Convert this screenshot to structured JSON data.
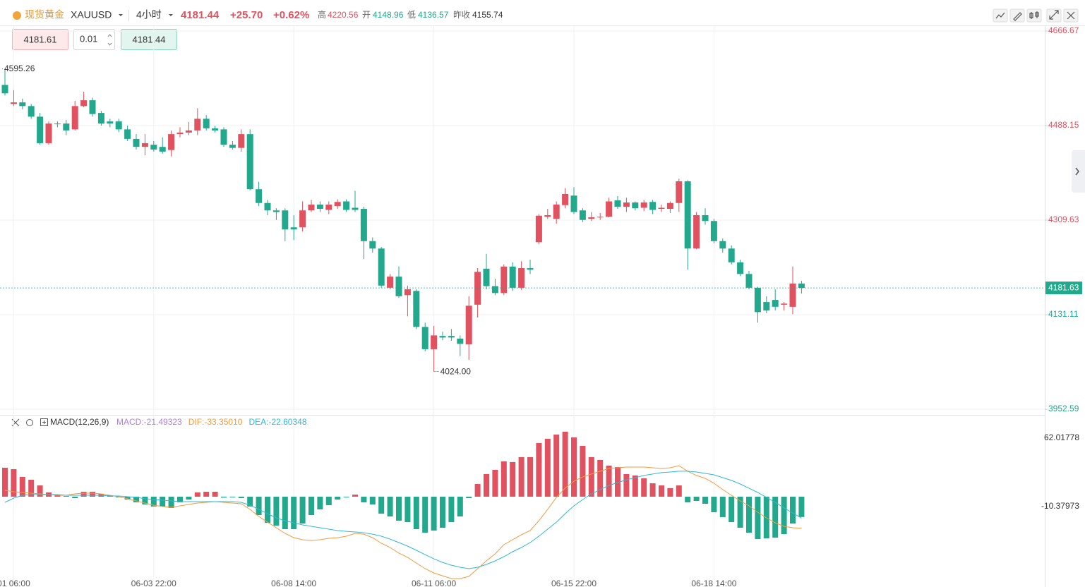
{
  "header": {
    "name": "现货黄金",
    "symbol": "XAUUSD",
    "interval": "4小时",
    "price": "4181.44",
    "change": "+25.70",
    "change_pct": "+0.62%",
    "high_label": "高",
    "high": "4220.56",
    "open_label": "开",
    "open": "4148.96",
    "low_label": "低",
    "low": "4136.57",
    "prev_close_label": "昨收",
    "prev_close": "4155.74"
  },
  "order_panel": {
    "sell": "4181.61",
    "lot": "0.01",
    "buy": "4181.44"
  },
  "chart_data": [
    {
      "type": "candlestick",
      "up_color": "#e0525f",
      "down_color": "#22a88c",
      "grid": true,
      "ylim": [
        3942,
        4676
      ],
      "yticks": [
        4666.67,
        4488.15,
        4309.63,
        4131.11,
        3952.59
      ],
      "last_price": 4181.63,
      "high_label": "4595.26",
      "low_label": "4024.00",
      "categories": [
        null,
        "01 06:00",
        null,
        null,
        null,
        null,
        null,
        null,
        null,
        null,
        null,
        null,
        null,
        null,
        null,
        null,
        null,
        "06-03 22:00",
        null,
        null,
        null,
        null,
        null,
        null,
        null,
        null,
        null,
        null,
        null,
        null,
        null,
        null,
        null,
        "06-08 14:00",
        null,
        null,
        null,
        null,
        null,
        null,
        null,
        null,
        null,
        null,
        null,
        null,
        null,
        null,
        null,
        "06-11 06:00",
        null,
        null,
        null,
        null,
        null,
        null,
        null,
        null,
        null,
        null,
        null,
        null,
        null,
        null,
        null,
        "06-15 22:00",
        null,
        null,
        null,
        null,
        null,
        null,
        null,
        null,
        null,
        null,
        null,
        null,
        null,
        null,
        null,
        "06-18 14:00",
        null,
        null,
        null,
        null,
        null,
        null,
        null,
        null,
        null,
        null
      ],
      "open": [
        4565,
        4529,
        4532,
        4525,
        4505,
        4455,
        4492,
        4492,
        4481,
        4525,
        4536,
        4512,
        4496,
        4496,
        4481,
        4463,
        4448,
        4452,
        4448,
        4442,
        4472,
        4475,
        4479,
        4501,
        4483,
        4481,
        4452,
        4446,
        4472,
        4368,
        4342,
        4328,
        4328,
        4296,
        4296,
        4328,
        4339,
        4329,
        4336,
        4345,
        4333,
        4331,
        4270,
        4256,
        4182,
        4203,
        4168,
        4176,
        4108,
        4066,
        4091,
        4091,
        4086,
        4075,
        4150,
        4218,
        4185,
        4172,
        4222,
        4182,
        4219,
        4268,
        4316,
        4312,
        4338,
        4356,
        4328,
        4312,
        4315,
        4316,
        4347,
        4335,
        4343,
        4333,
        4344,
        4331,
        4331,
        4342,
        4383,
        4256,
        4319,
        4308,
        4270,
        4256,
        4230,
        4208,
        4182,
        4155,
        4159,
        4150,
        4146,
        4190
      ],
      "high": [
        4595.26,
        4555,
        4539,
        4529,
        4512,
        4496,
        4496,
        4499,
        4535,
        4552,
        4541,
        4516,
        4501,
        4501,
        4488,
        4472,
        4472,
        4459,
        4466,
        4479,
        4485,
        4495,
        4521,
        4508,
        4488,
        4485,
        4459,
        4481,
        4481,
        4382,
        4348,
        4332,
        4332,
        4319,
        4345,
        4348,
        4345,
        4345,
        4349,
        4349,
        4365,
        4335,
        4277,
        4259,
        4208,
        4222,
        4186,
        4179,
        4116,
        4110,
        4099,
        4104,
        4092,
        4166,
        4219,
        4246,
        4199,
        4226,
        4230,
        4232,
        4235,
        4321,
        4331,
        4345,
        4370,
        4372,
        4332,
        4325,
        4323,
        4352,
        4355,
        4352,
        4345,
        4348,
        4348,
        4339,
        4345,
        4388,
        4385,
        4325,
        4332,
        4312,
        4275,
        4262,
        4235,
        4214,
        4184,
        4166,
        4179,
        4155,
        4222,
        4195
      ],
      "low": [
        4545,
        4525,
        4519,
        4501,
        4452,
        4452,
        4485,
        4470,
        4479,
        4523,
        4505,
        4488,
        4485,
        4476,
        4459,
        4443,
        4432,
        4439,
        4435,
        4430,
        4466,
        4470,
        4470,
        4479,
        4475,
        4448,
        4443,
        4439,
        4366,
        4336,
        4319,
        4310,
        4270,
        4272,
        4288,
        4325,
        4325,
        4321,
        4331,
        4325,
        4325,
        4236,
        4248,
        4182,
        4179,
        4163,
        4128,
        4104,
        4062,
        4024,
        4083,
        4082,
        4053,
        4046,
        4126,
        4179,
        4168,
        4168,
        4176,
        4178,
        4208,
        4264,
        4312,
        4303,
        4332,
        4321,
        4306,
        4308,
        4310,
        4315,
        4331,
        4325,
        4328,
        4327,
        4321,
        4325,
        4323,
        4325,
        4216,
        4255,
        4301,
        4266,
        4248,
        4226,
        4204,
        4179,
        4116,
        4134,
        4139,
        4139,
        4132,
        4171
      ],
      "close": [
        4549,
        4532,
        4525,
        4505,
        4455,
        4492,
        4491,
        4479,
        4525,
        4536,
        4510,
        4492,
        4492,
        4481,
        4463,
        4448,
        4455,
        4443,
        4439,
        4472,
        4475,
        4479,
        4501,
        4483,
        4479,
        4452,
        4446,
        4472,
        4368,
        4342,
        4328,
        4325,
        4292,
        4292,
        4328,
        4339,
        4331,
        4339,
        4344,
        4329,
        4329,
        4270,
        4256,
        4186,
        4203,
        4166,
        4179,
        4108,
        4066,
        4092,
        4088,
        4088,
        4076,
        4148,
        4212,
        4185,
        4172,
        4222,
        4182,
        4219,
        4216,
        4318,
        4319,
        4339,
        4359,
        4325,
        4310,
        4315,
        4316,
        4345,
        4335,
        4343,
        4332,
        4343,
        4329,
        4333,
        4342,
        4383,
        4256,
        4319,
        4308,
        4270,
        4256,
        4230,
        4208,
        4182,
        4136,
        4139,
        4146,
        4152,
        4190,
        4181.63
      ]
    },
    {
      "type": "macd",
      "title": "MACD(12,26,9)",
      "up_color": "#e0525f",
      "down_color": "#22a88c",
      "ylim": [
        -88,
        85
      ],
      "yticks": [
        62.01778,
        -10.37973
      ],
      "series": [
        {
          "name": "MACD:-21.49323",
          "type": "bar",
          "color": "#b07fd3",
          "values": [
            30.6,
            29.1,
            20.9,
            17.9,
            11.9,
            4.5,
            2.2,
            0.7,
            -1.5,
            5.2,
            5.2,
            3.0,
            1.5,
            -0.7,
            -3.0,
            -6.0,
            -8.2,
            -10.4,
            -10.4,
            -11.9,
            -6.0,
            -3.0,
            4.5,
            5.2,
            5.2,
            -1.0,
            -0.7,
            -1.5,
            -10.4,
            -19.4,
            -27.6,
            -30.6,
            -34.3,
            -34.3,
            -28.4,
            -19.4,
            -13.4,
            -9.0,
            -3.0,
            -0.7,
            2.2,
            -6.0,
            -8.2,
            -17.9,
            -20.9,
            -25.4,
            -26.9,
            -34.3,
            -38.1,
            -35.8,
            -32.8,
            -26.9,
            -20.9,
            -1.5,
            13.4,
            23.9,
            28.4,
            37.3,
            36.6,
            41.8,
            41.8,
            56.7,
            61.2,
            65.7,
            68.7,
            62.7,
            53.7,
            41.8,
            38.8,
            32.8,
            31.3,
            23.9,
            22.4,
            19.4,
            14.2,
            11.9,
            9.0,
            11.9,
            -6.0,
            -4.5,
            -7.5,
            -16.4,
            -21.6,
            -26.9,
            -32.8,
            -38.1,
            -44.8,
            -44.0,
            -43.3,
            -39.6,
            -28.4,
            -21.49323
          ]
        },
        {
          "name": "DIF:-33.35010",
          "type": "line",
          "color": "#f39a3d",
          "values": [
            6.7,
            5.2,
            4.5,
            3.7,
            3.0,
            2.2,
            1.5,
            1.5,
            3.0,
            3.7,
            3.7,
            3.0,
            1.5,
            0,
            -2.2,
            -4.5,
            -6.7,
            -9.0,
            -10.4,
            -11.2,
            -9.7,
            -8.2,
            -6.7,
            -6.0,
            -5.2,
            -6.0,
            -6.7,
            -7.5,
            -13.4,
            -20.9,
            -26.9,
            -32.8,
            -38.8,
            -43.3,
            -45.5,
            -46.3,
            -45.5,
            -44.0,
            -43.3,
            -41.8,
            -38.8,
            -39.6,
            -43.3,
            -49.2,
            -53.7,
            -59.7,
            -64.2,
            -70.1,
            -76.1,
            -80.6,
            -83.6,
            -86.6,
            -86.6,
            -84.3,
            -76.1,
            -67.9,
            -60.4,
            -50.7,
            -45.5,
            -40.3,
            -35.8,
            -25.4,
            -13.4,
            -0.7,
            9.0,
            16.4,
            20.9,
            23.9,
            26.9,
            29.8,
            30.6,
            31.3,
            31.3,
            31.3,
            30.6,
            29.8,
            30.6,
            32.8,
            26.9,
            22.4,
            19.4,
            14.2,
            7.5,
            1.5,
            -4.5,
            -9.7,
            -16.4,
            -22.4,
            -27.6,
            -31.3,
            -32.8,
            -33.3501
          ]
        },
        {
          "name": "DEA:-22.60348",
          "type": "line",
          "color": "#2fb9d6",
          "values": [
            -6.0,
            -1.5,
            1.5,
            2.2,
            2.2,
            2.2,
            2.2,
            1.5,
            1.5,
            1.5,
            1.5,
            1.5,
            0.7,
            0.7,
            0,
            -0.7,
            -2.2,
            -3.0,
            -3.7,
            -4.5,
            -5.2,
            -5.2,
            -5.2,
            -5.2,
            -5.2,
            -5.2,
            -5.2,
            -6.0,
            -9.0,
            -13.4,
            -17.9,
            -22.4,
            -25.4,
            -27.6,
            -29.8,
            -31.3,
            -32.8,
            -34.3,
            -35.8,
            -36.6,
            -37.3,
            -38.1,
            -39.6,
            -41.8,
            -44.8,
            -48.5,
            -52.2,
            -56.7,
            -61.2,
            -65.7,
            -69.4,
            -72.4,
            -74.6,
            -76.1,
            -74.6,
            -71.6,
            -67.9,
            -63.4,
            -58.2,
            -53.7,
            -48.5,
            -41.8,
            -34.3,
            -26.9,
            -17.9,
            -9.7,
            -3.0,
            3.0,
            7.5,
            11.9,
            14.9,
            17.9,
            20.1,
            22.4,
            23.9,
            25.4,
            26.1,
            26.9,
            26.9,
            26.1,
            24.6,
            23.1,
            20.1,
            17.2,
            13.4,
            9.0,
            4.5,
            -0.7,
            -6.0,
            -11.9,
            -17.2,
            -22.60348
          ]
        }
      ]
    }
  ]
}
